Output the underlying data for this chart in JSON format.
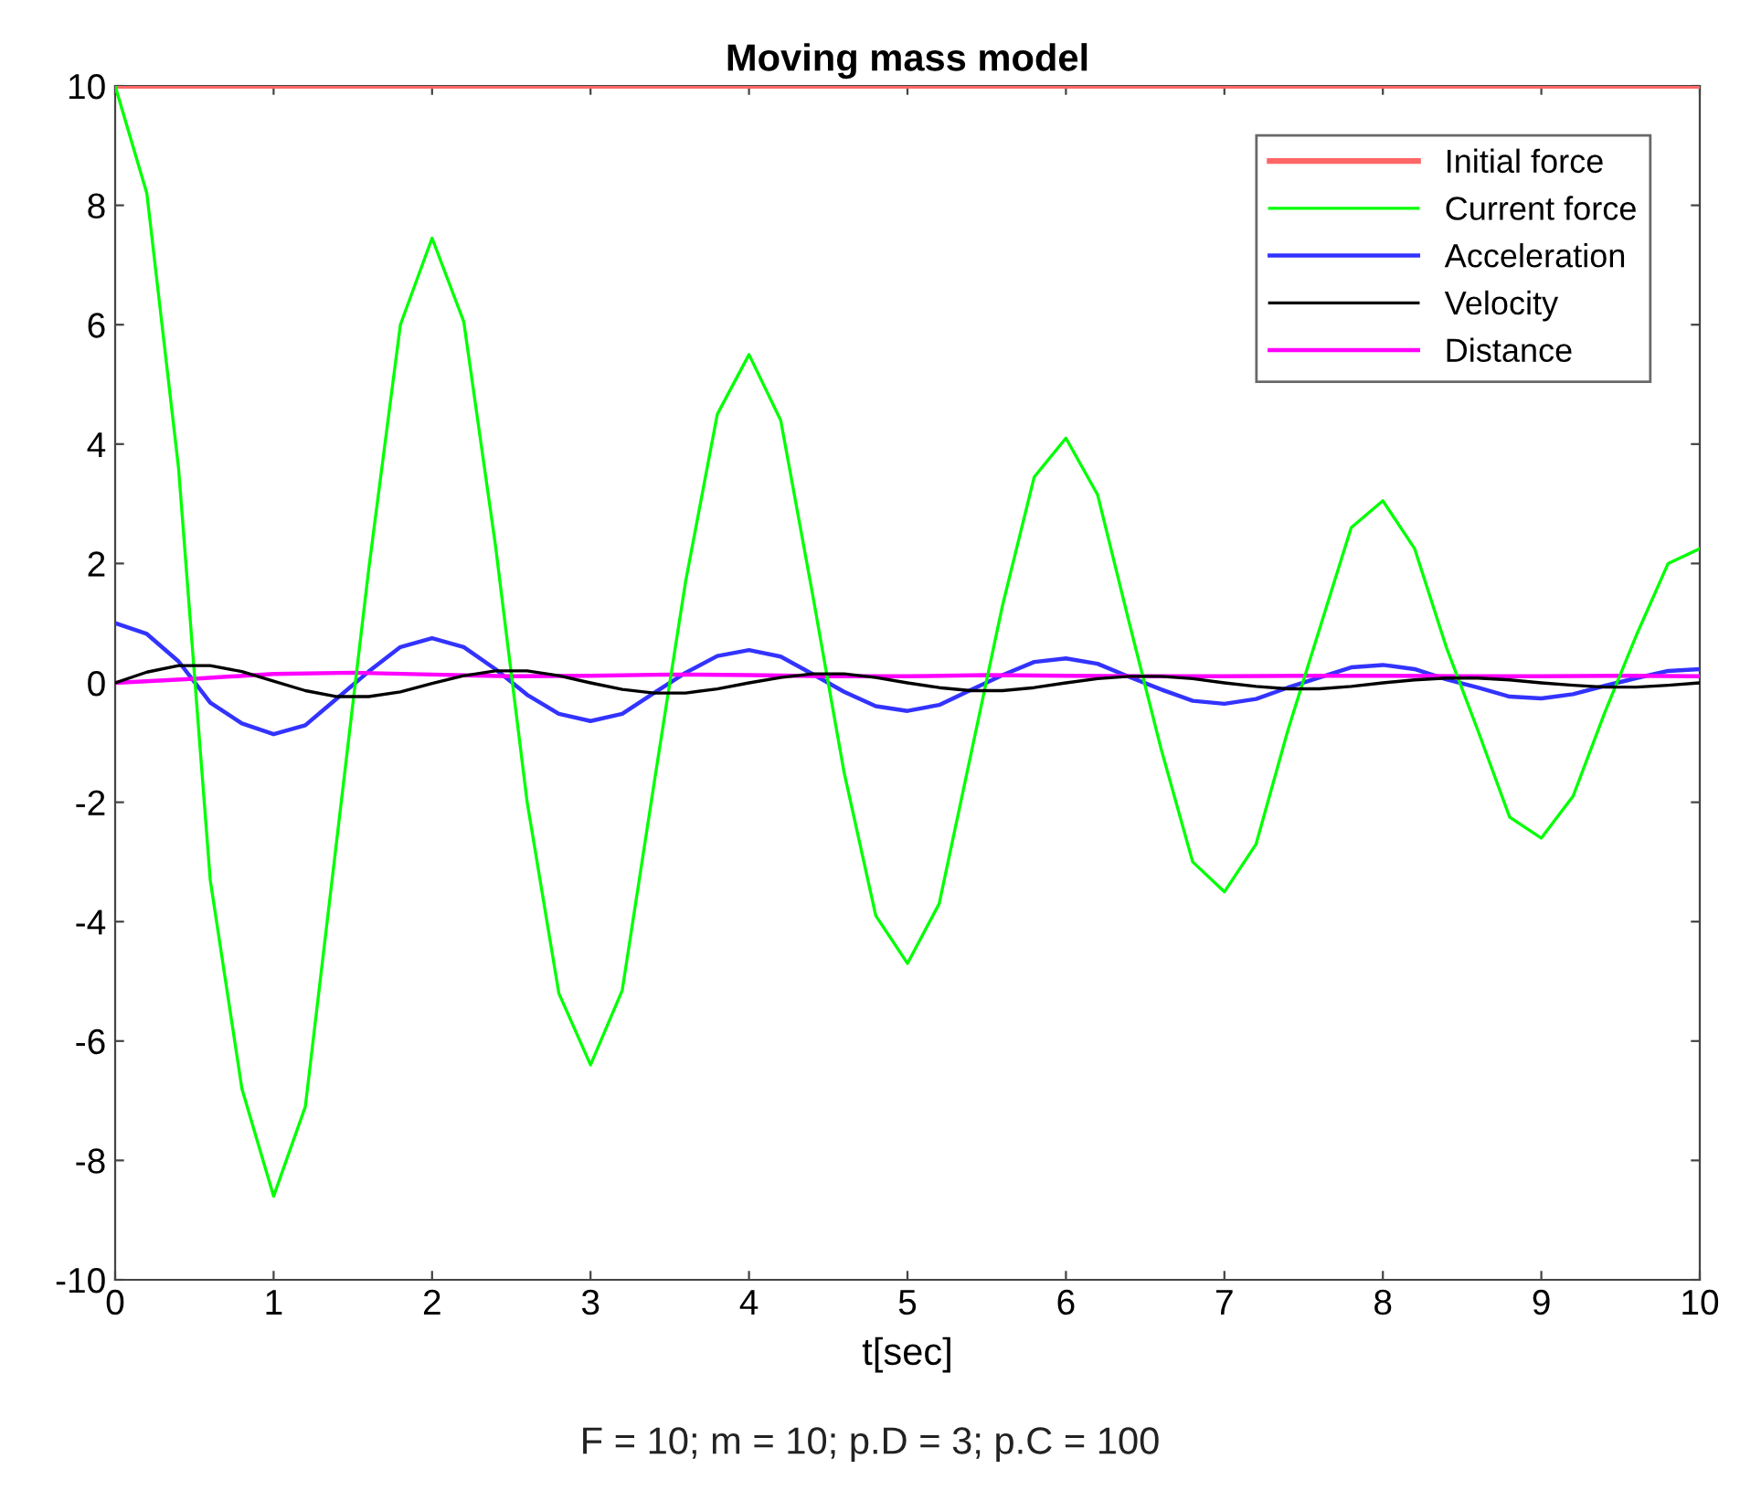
{
  "chart_data": {
    "type": "line",
    "title": "Moving mass model",
    "xlabel": "t[sec]",
    "annotations": [
      "F = 10; m = 10; p.D = 3; p.C = 100"
    ],
    "xlim": [
      0,
      10
    ],
    "ylim": [
      -10,
      10
    ],
    "xticks": [
      0,
      1,
      2,
      3,
      4,
      5,
      6,
      7,
      8,
      9,
      10
    ],
    "yticks": [
      -10,
      -8,
      -6,
      -4,
      -2,
      0,
      2,
      4,
      6,
      8,
      10
    ],
    "grid": false,
    "legend": "top right",
    "series": [
      {
        "name": "Initial force",
        "color": "#ff6666",
        "x": [
          0,
          10
        ],
        "values": [
          10,
          10
        ]
      },
      {
        "name": "Current force",
        "color": "#00ff00",
        "x": [
          0,
          0.2,
          0.4,
          0.6,
          0.8,
          1,
          1.2,
          1.4,
          1.6,
          1.8,
          2,
          2.2,
          2.4,
          2.6,
          2.8,
          3,
          3.2,
          3.4,
          3.6,
          3.8,
          4,
          4.2,
          4.4,
          4.6,
          4.8,
          5,
          5.2,
          5.4,
          5.6,
          5.8,
          6,
          6.2,
          6.4,
          6.6,
          6.8,
          7,
          7.2,
          7.4,
          7.6,
          7.8,
          8,
          8.2,
          8.4,
          8.6,
          8.8,
          9,
          9.2,
          9.4,
          9.6,
          9.8,
          10
        ],
        "values": [
          10,
          8.2,
          3.6,
          -3.3,
          -6.8,
          -8.6,
          -7.1,
          -2.6,
          1.9,
          6.0,
          7.45,
          6.05,
          2.3,
          -2.0,
          -5.2,
          -6.4,
          -5.15,
          -1.7,
          1.7,
          4.5,
          5.5,
          4.4,
          1.5,
          -1.5,
          -3.9,
          -4.7,
          -3.7,
          -1.2,
          1.3,
          3.45,
          4.1,
          3.15,
          1.0,
          -1.1,
          -3.0,
          -3.5,
          -2.7,
          -0.8,
          0.9,
          2.6,
          3.05,
          2.25,
          0.6,
          -0.8,
          -2.25,
          -2.6,
          -1.9,
          -0.5,
          0.8,
          2.0,
          2.25
        ]
      },
      {
        "name": "Acceleration",
        "color": "#3333ff",
        "x": [
          0,
          0.2,
          0.4,
          0.6,
          0.8,
          1,
          1.2,
          1.4,
          1.6,
          1.8,
          2,
          2.2,
          2.4,
          2.6,
          2.8,
          3,
          3.2,
          3.4,
          3.6,
          3.8,
          4,
          4.2,
          4.4,
          4.6,
          4.8,
          5,
          5.2,
          5.4,
          5.6,
          5.8,
          6,
          6.2,
          6.4,
          6.6,
          6.8,
          7,
          7.2,
          7.4,
          7.6,
          7.8,
          8,
          8.2,
          8.4,
          8.6,
          8.8,
          9,
          9.2,
          9.4,
          9.6,
          9.8,
          10
        ],
        "values": [
          1.0,
          0.82,
          0.36,
          -0.33,
          -0.68,
          -0.86,
          -0.71,
          -0.26,
          0.19,
          0.6,
          0.75,
          0.6,
          0.23,
          -0.2,
          -0.52,
          -0.64,
          -0.52,
          -0.17,
          0.17,
          0.45,
          0.55,
          0.44,
          0.15,
          -0.15,
          -0.39,
          -0.47,
          -0.37,
          -0.12,
          0.13,
          0.35,
          0.41,
          0.32,
          0.1,
          -0.11,
          -0.3,
          -0.35,
          -0.27,
          -0.08,
          0.09,
          0.26,
          0.3,
          0.23,
          0.06,
          -0.08,
          -0.23,
          -0.26,
          -0.19,
          -0.05,
          0.08,
          0.2,
          0.23
        ]
      },
      {
        "name": "Velocity",
        "color": "#000000",
        "x": [
          0,
          0.2,
          0.4,
          0.6,
          0.8,
          1,
          1.2,
          1.4,
          1.6,
          1.8,
          2,
          2.2,
          2.4,
          2.6,
          2.8,
          3,
          3.2,
          3.4,
          3.6,
          3.8,
          4,
          4.2,
          4.4,
          4.6,
          4.8,
          5,
          5.2,
          5.4,
          5.6,
          5.8,
          6,
          6.2,
          6.4,
          6.6,
          6.8,
          7,
          7.2,
          7.4,
          7.6,
          7.8,
          8,
          8.2,
          8.4,
          8.6,
          8.8,
          9,
          9.2,
          9.4,
          9.6,
          9.8,
          10
        ],
        "values": [
          0,
          0.18,
          0.29,
          0.29,
          0.19,
          0.03,
          -0.13,
          -0.23,
          -0.23,
          -0.15,
          -0.01,
          0.12,
          0.2,
          0.2,
          0.12,
          0,
          -0.11,
          -0.17,
          -0.17,
          -0.1,
          0,
          0.09,
          0.15,
          0.15,
          0.09,
          0,
          -0.08,
          -0.13,
          -0.13,
          -0.08,
          0,
          0.07,
          0.11,
          0.11,
          0.07,
          0,
          -0.06,
          -0.1,
          -0.1,
          -0.06,
          0,
          0.05,
          0.08,
          0.08,
          0.05,
          0,
          -0.04,
          -0.07,
          -0.07,
          -0.04,
          0
        ]
      },
      {
        "name": "Distance",
        "color": "#ff00ff",
        "x": [
          0,
          0.5,
          1,
          1.5,
          2,
          2.5,
          3,
          3.5,
          4,
          4.5,
          5,
          5.5,
          6,
          6.5,
          7,
          7.5,
          8,
          8.5,
          9,
          9.5,
          10
        ],
        "values": [
          0,
          0.07,
          0.15,
          0.17,
          0.14,
          0.11,
          0.12,
          0.14,
          0.13,
          0.11,
          0.11,
          0.13,
          0.12,
          0.11,
          0.11,
          0.12,
          0.12,
          0.11,
          0.11,
          0.12,
          0.11
        ]
      }
    ]
  }
}
